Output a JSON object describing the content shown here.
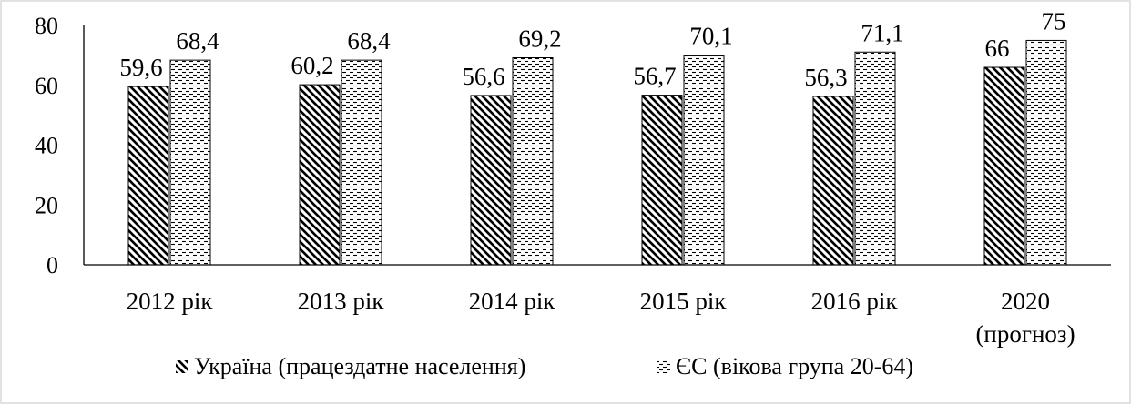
{
  "chart_data": {
    "type": "bar",
    "title": "",
    "xlabel": "",
    "ylabel": "",
    "ylim": [
      0,
      80
    ],
    "yticks": [
      "0",
      "20",
      "40",
      "60",
      "80"
    ],
    "grid": false,
    "legend_position": "bottom",
    "categories": [
      [
        "2012 рік"
      ],
      [
        "2013 рік"
      ],
      [
        "2014 рік"
      ],
      [
        "2015 рік"
      ],
      [
        "2016 рік"
      ],
      [
        "2020",
        "(прогноз)"
      ]
    ],
    "series": [
      {
        "name": "Україна (працездатне населення)",
        "pattern": "diagonal-hatch",
        "values": [
          59.6,
          60.2,
          56.6,
          56.7,
          56.3,
          66
        ],
        "labels": [
          "59,6",
          "60,2",
          "56,6",
          "56,7",
          "56,3",
          "66"
        ]
      },
      {
        "name": "ЄС (вікова група 20-64)",
        "pattern": "dashed-dots",
        "values": [
          68.4,
          68.4,
          69.2,
          70.1,
          71.1,
          75
        ],
        "labels": [
          "68,4",
          "68,4",
          "69,2",
          "70,1",
          "71,1",
          "75"
        ]
      }
    ],
    "colors": {
      "ink": "#000000",
      "frame": "#d9d9d9",
      "background": "#ffffff"
    }
  }
}
